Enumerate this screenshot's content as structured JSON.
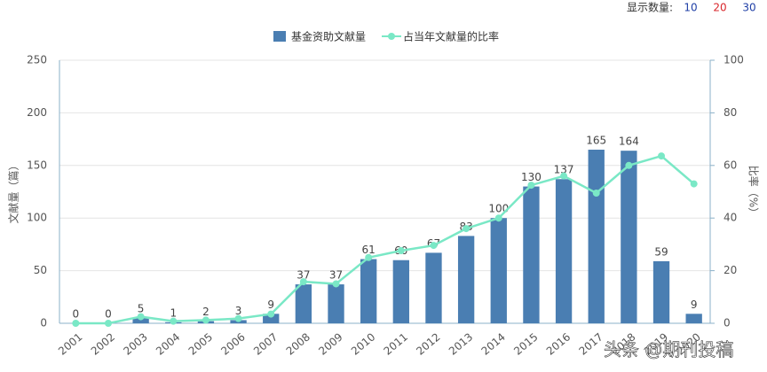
{
  "controls": {
    "label": "显示数量:",
    "options": [
      {
        "text": "10",
        "color": "#1f3fa6"
      },
      {
        "text": "20",
        "color": "#d9262b"
      },
      {
        "text": "30",
        "color": "#1f3fa6"
      }
    ]
  },
  "chart_data": {
    "type": "bar",
    "categories": [
      "2001",
      "2002",
      "2003",
      "2004",
      "2005",
      "2006",
      "2007",
      "2008",
      "2009",
      "2010",
      "2011",
      "2012",
      "2013",
      "2014",
      "2015",
      "2016",
      "2017",
      "2018",
      "2019",
      "2020"
    ],
    "series": [
      {
        "name": "基金资助文献量",
        "type": "bar",
        "color": "#4a7eb2",
        "values": [
          0,
          0,
          5,
          1,
          2,
          3,
          9,
          37,
          37,
          61,
          60,
          67,
          83,
          100,
          130,
          137,
          165,
          164,
          59,
          9
        ]
      },
      {
        "name": "占当年文献量的比率",
        "type": "line",
        "axis": "y2",
        "color": "#7ae8c6",
        "values": [
          0,
          0,
          2.5,
          0.8,
          1.2,
          1.8,
          3.5,
          15.8,
          15,
          25,
          27.6,
          29.6,
          36,
          40,
          52.5,
          56,
          49.5,
          60,
          63.6,
          53
        ]
      }
    ],
    "ylabel": "文献量（篇）",
    "y2label": "比率（%）",
    "ylim": [
      0,
      250
    ],
    "yticks": [
      0,
      50,
      100,
      150,
      200,
      250
    ],
    "y2lim": [
      0,
      100
    ],
    "y2ticks": [
      0,
      20,
      40,
      60,
      80,
      100
    ],
    "grid": true,
    "legend": "top"
  },
  "watermark": "头条 @期刊投稿"
}
